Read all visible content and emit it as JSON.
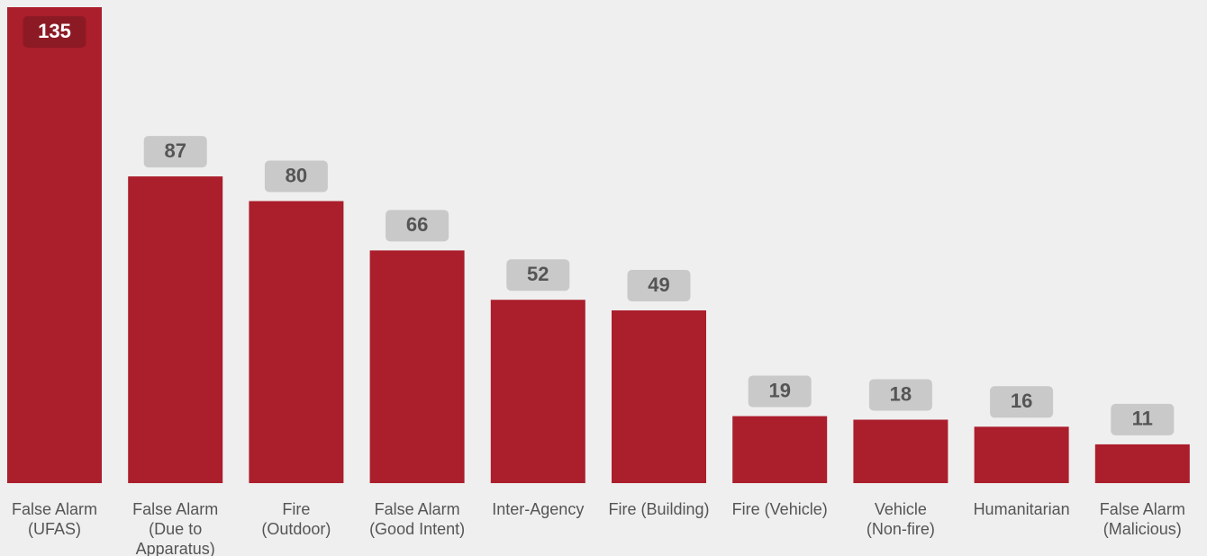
{
  "chart_data": {
    "type": "bar",
    "categories": [
      "False Alarm\n(UFAS)",
      "False Alarm\n(Due to\nApparatus)",
      "Fire\n(Outdoor)",
      "False Alarm\n(Good Intent)",
      "Inter-Agency",
      "Fire (Building)",
      "Fire (Vehicle)",
      "Vehicle\n(Non-fire)",
      "Humanitarian",
      "False Alarm\n(Malicious)"
    ],
    "values": [
      135,
      87,
      80,
      66,
      52,
      49,
      19,
      18,
      16,
      11
    ],
    "color": "#ab1e2c",
    "ylim": [
      0,
      135
    ]
  }
}
